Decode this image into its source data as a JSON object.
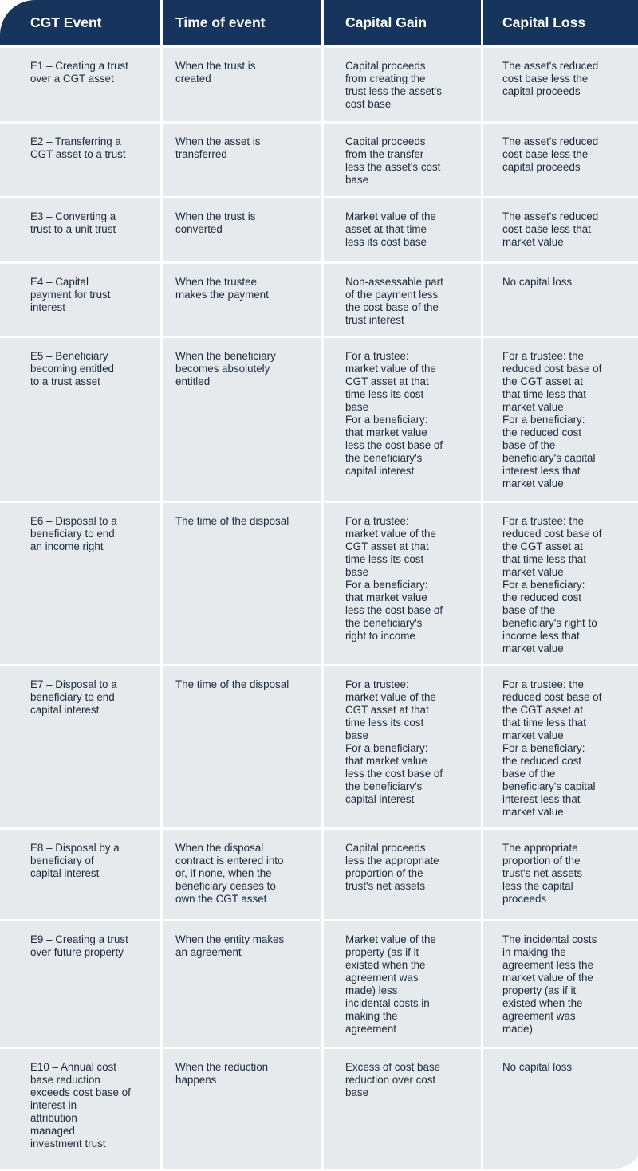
{
  "headers": [
    "CGT Event",
    "Time of event",
    "Capital Gain",
    "Capital Loss"
  ],
  "rows": [
    {
      "event": "E1 – Creating a trust\nover a CGT asset",
      "time": "When the trust is\ncreated",
      "gain": "Capital proceeds\nfrom creating the\ntrust less the asset's\ncost base",
      "loss": "The asset's reduced\ncost base less the\ncapital proceeds"
    },
    {
      "event": "E2 – Transferring a\nCGT asset to a trust",
      "time": "When the asset is\ntransferred",
      "gain": "Capital proceeds\nfrom the transfer\nless the asset's cost\nbase",
      "loss": "The asset's reduced\ncost base less the\ncapital proceeds"
    },
    {
      "event": "E3 – Converting a\ntrust to a unit trust",
      "time": "When the trust is\nconverted",
      "gain": "Market value of the\nasset at that time\nless its cost base",
      "loss": "The asset's reduced\ncost base less that\nmarket value"
    },
    {
      "event": "E4 – Capital\npayment for trust\ninterest",
      "time": "When the trustee\nmakes the payment",
      "gain": "Non-assessable part\nof the payment less\nthe cost base of the\ntrust interest",
      "loss": "No capital loss"
    },
    {
      "event": "E5 – Beneficiary\nbecoming entitled\nto a trust asset",
      "time": "When the beneficiary\nbecomes absolutely\nentitled",
      "gain": "For a trustee:\nmarket value of the\nCGT asset at that\ntime less its cost\nbase\nFor a beneficiary:\nthat market value\nless the cost base of\nthe beneficiary's\ncapital interest",
      "loss": "For a trustee: the\nreduced cost base of\nthe CGT asset at\nthat time less that\nmarket value\nFor a beneficiary:\nthe reduced cost\nbase of the\nbeneficiary's capital\ninterest less that\nmarket value"
    },
    {
      "event": "E6 – Disposal to a\nbeneficiary to end\nan income right",
      "time": "The time of the disposal",
      "gain": "For a trustee:\nmarket value of the\nCGT asset at that\ntime less its cost\nbase\nFor a beneficiary:\nthat market value\nless the cost base of\nthe beneficiary's\nright to income",
      "loss": "For a trustee: the\nreduced cost base of\nthe CGT asset at\nthat time less that\nmarket value\nFor a beneficiary:\nthe reduced cost\nbase of the\nbeneficiary's right to\nincome less that\nmarket value"
    },
    {
      "event": "E7 – Disposal to a\nbeneficiary to end\ncapital interest",
      "time": "The time of the disposal",
      "gain": "For a trustee:\nmarket value of the\nCGT asset at that\ntime less its cost\nbase\nFor a beneficiary:\nthat market value\nless the cost base of\nthe beneficiary's\ncapital interest",
      "loss": "For a trustee: the\nreduced cost base of\nthe CGT asset at\nthat time less that\nmarket value\nFor a beneficiary:\nthe reduced cost\nbase of the\nbeneficiary's capital\ninterest less that\nmarket value"
    },
    {
      "event": "E8 – Disposal by a\nbeneficiary of\ncapital interest",
      "time": "When the disposal\ncontract is entered into\nor, if none, when the\nbeneficiary ceases to\nown the CGT asset",
      "gain": "Capital proceeds\nless the appropriate\nproportion of the\ntrust's net assets",
      "loss": "The appropriate\nproportion of the\ntrust's net assets\nless the capital\nproceeds"
    },
    {
      "event": "E9 – Creating a trust\nover future property",
      "time": "When the entity makes\nan agreement",
      "gain": "Market value of the\nproperty (as if it\nexisted when the\nagreement was\nmade) less\nincidental costs in\nmaking the\nagreement",
      "loss": "The incidental costs\nin making the\nagreement less the\nmarket value of the\nproperty (as if it\nexisted when the\nagreement was\nmade)"
    },
    {
      "event": "E10 – Annual cost\nbase reduction\nexceeds cost base of\ninterest in\nattribution\nmanaged\ninvestment trust",
      "time": "When the reduction\nhappens",
      "gain": "Excess of cost base\nreduction over cost\nbase",
      "loss": "No capital loss"
    }
  ],
  "colors": {
    "header_bg": "#17355c",
    "cell_bg": "#e6eaed",
    "text": "#1a2a3d"
  }
}
